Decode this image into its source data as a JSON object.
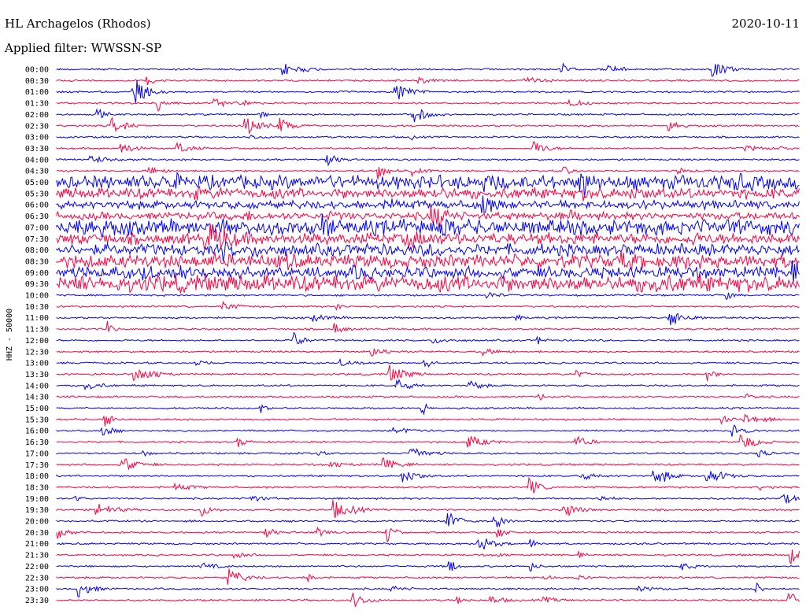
{
  "header": {
    "station": "HL Archagelos (Rhodos)",
    "date": "2020-10-11",
    "filter": "Applied filter: WWSSN-SP"
  },
  "chart_data": {
    "type": "line",
    "title": "HL Archagelos (Rhodos)",
    "ylabel": "HHZ - 50000",
    "colors": {
      "even": "#0000ff",
      "odd": "#ff0040"
    },
    "rows": [
      "00:00",
      "00:30",
      "01:00",
      "01:30",
      "02:00",
      "02:30",
      "03:00",
      "03:30",
      "04:00",
      "04:30",
      "05:00",
      "05:30",
      "06:00",
      "06:30",
      "07:00",
      "07:30",
      "08:00",
      "08:30",
      "09:00",
      "09:30",
      "10:00",
      "10:30",
      "11:00",
      "11:30",
      "12:00",
      "12:30",
      "13:00",
      "13:30",
      "14:00",
      "14:30",
      "15:00",
      "15:30",
      "16:00",
      "16:30",
      "17:00",
      "17:30",
      "18:00",
      "18:30",
      "19:00",
      "19:30",
      "20:00",
      "20:30",
      "21:00",
      "21:30",
      "22:00",
      "22:30",
      "23:00",
      "23:30"
    ]
  }
}
